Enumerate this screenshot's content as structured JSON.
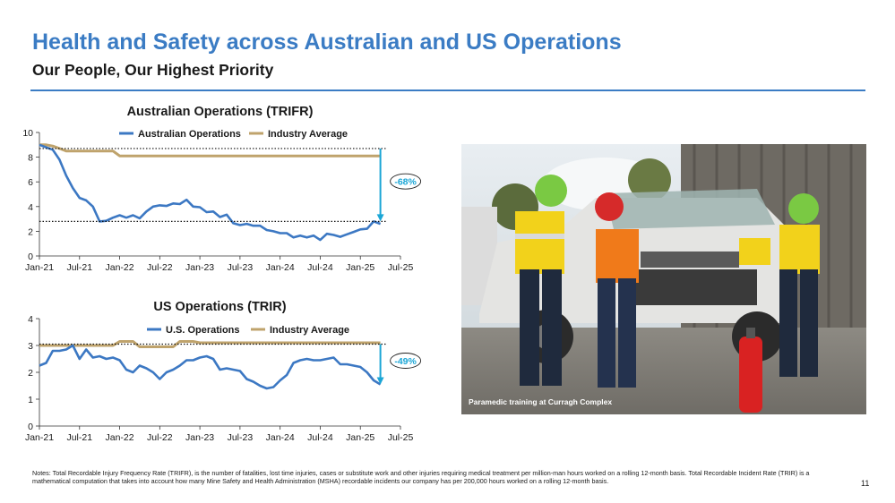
{
  "header": {
    "title": "Health and Safety across Australian and US Operations",
    "subtitle": "Our People, Our Highest Priority"
  },
  "chart_data": [
    {
      "type": "line",
      "title": "Australian Operations (TRIFR)",
      "x_tick_labels": [
        "Jan-21",
        "Jul-21",
        "Jan-22",
        "Jul-22",
        "Jan-23",
        "Jul-23",
        "Jan-24",
        "Jul-24",
        "Jan-25",
        "Jul-25"
      ],
      "ylim": [
        0,
        10
      ],
      "y_ticks": [
        0,
        2,
        4,
        6,
        8,
        10
      ],
      "legend_position": "top-center",
      "grid": false,
      "series": [
        {
          "name": "Australian Operations",
          "color": "#3c78c3",
          "x": [
            "Jan-21",
            "Feb-21",
            "Mar-21",
            "Apr-21",
            "May-21",
            "Jun-21",
            "Jul-21",
            "Aug-21",
            "Sep-21",
            "Oct-21",
            "Nov-21",
            "Dec-21",
            "Jan-22",
            "Feb-22",
            "Mar-22",
            "Apr-22",
            "May-22",
            "Jun-22",
            "Jul-22",
            "Aug-22",
            "Sep-22",
            "Oct-22",
            "Nov-22",
            "Dec-22",
            "Jan-23",
            "Feb-23",
            "Mar-23",
            "Apr-23",
            "May-23",
            "Jun-23",
            "Jul-23",
            "Aug-23",
            "Sep-23",
            "Oct-23",
            "Nov-23",
            "Dec-23",
            "Jan-24",
            "Feb-24",
            "Mar-24",
            "Apr-24",
            "May-24",
            "Jun-24",
            "Jul-24",
            "Aug-24",
            "Sep-24",
            "Oct-24",
            "Nov-24",
            "Dec-24",
            "Jan-25",
            "Feb-25",
            "Mar-25",
            "Apr-25"
          ],
          "values": [
            9.0,
            8.8,
            8.6,
            7.8,
            6.5,
            5.5,
            4.7,
            4.5,
            4.0,
            2.8,
            2.85,
            3.1,
            3.3,
            3.1,
            3.3,
            3.05,
            3.6,
            4.0,
            4.1,
            4.05,
            4.25,
            4.2,
            4.55,
            4.0,
            3.95,
            3.55,
            3.6,
            3.15,
            3.35,
            2.65,
            2.5,
            2.6,
            2.45,
            2.45,
            2.1,
            2.0,
            1.85,
            1.85,
            1.5,
            1.65,
            1.5,
            1.65,
            1.3,
            1.8,
            1.7,
            1.55,
            1.75,
            1.95,
            2.15,
            2.2,
            2.8,
            2.6
          ]
        },
        {
          "name": "Industry Average",
          "color": "#bfa36c",
          "x": [
            "Jan-21",
            "Feb-21",
            "Mar-21",
            "Apr-21",
            "May-21",
            "Jun-21",
            "Jul-21",
            "Aug-21",
            "Sep-21",
            "Oct-21",
            "Nov-21",
            "Dec-21",
            "Jan-22",
            "Feb-22",
            "Mar-22",
            "Apr-22",
            "May-22",
            "Jun-22",
            "Jul-22",
            "Aug-22",
            "Sep-22",
            "Oct-22",
            "Nov-22",
            "Dec-22",
            "Jan-23",
            "Feb-23",
            "Mar-23",
            "Apr-23",
            "May-23",
            "Jun-23",
            "Jul-23",
            "Aug-23",
            "Sep-23",
            "Oct-23",
            "Nov-23",
            "Dec-23",
            "Jan-24",
            "Feb-24",
            "Mar-24",
            "Apr-24",
            "May-24",
            "Jun-24",
            "Jul-24",
            "Aug-24",
            "Sep-24",
            "Oct-24",
            "Nov-24",
            "Dec-24",
            "Jan-25",
            "Feb-25",
            "Mar-25",
            "Apr-25"
          ],
          "values": [
            9.0,
            9.0,
            8.9,
            8.7,
            8.5,
            8.5,
            8.5,
            8.5,
            8.5,
            8.5,
            8.5,
            8.5,
            8.1,
            8.1,
            8.1,
            8.1,
            8.1,
            8.1,
            8.1,
            8.1,
            8.1,
            8.1,
            8.1,
            8.1,
            8.1,
            8.1,
            8.1,
            8.1,
            8.1,
            8.1,
            8.1,
            8.1,
            8.1,
            8.1,
            8.1,
            8.1,
            8.1,
            8.1,
            8.1,
            8.1,
            8.1,
            8.1,
            8.1,
            8.1,
            8.1,
            8.1,
            8.1,
            8.1,
            8.1,
            8.1,
            8.1,
            8.1
          ]
        }
      ],
      "annotations": [
        {
          "type": "reference-line",
          "value": 8.7,
          "style": "dotted"
        },
        {
          "type": "reference-line",
          "value": 2.8,
          "style": "dotted"
        },
        {
          "type": "arrow",
          "at": "Apr-25",
          "from": 8.7,
          "to": 2.8,
          "label": "-68%"
        }
      ]
    },
    {
      "type": "line",
      "title": "US Operations (TRIR)",
      "x_tick_labels": [
        "Jan-21",
        "Jul-21",
        "Jan-22",
        "Jul-22",
        "Jan-23",
        "Jul-23",
        "Jan-24",
        "Jul-24",
        "Jan-25",
        "Jul-25"
      ],
      "ylim": [
        0,
        4
      ],
      "y_ticks": [
        0,
        1,
        2,
        3,
        4
      ],
      "legend_position": "top-center",
      "grid": false,
      "series": [
        {
          "name": "U.S. Operations",
          "color": "#3c78c3",
          "x": [
            "Jan-21",
            "Feb-21",
            "Mar-21",
            "Apr-21",
            "May-21",
            "Jun-21",
            "Jul-21",
            "Aug-21",
            "Sep-21",
            "Oct-21",
            "Nov-21",
            "Dec-21",
            "Jan-22",
            "Feb-22",
            "Mar-22",
            "Apr-22",
            "May-22",
            "Jun-22",
            "Jul-22",
            "Aug-22",
            "Sep-22",
            "Oct-22",
            "Nov-22",
            "Dec-22",
            "Jan-23",
            "Feb-23",
            "Mar-23",
            "Apr-23",
            "May-23",
            "Jun-23",
            "Jul-23",
            "Aug-23",
            "Sep-23",
            "Oct-23",
            "Nov-23",
            "Dec-23",
            "Jan-24",
            "Feb-24",
            "Mar-24",
            "Apr-24",
            "May-24",
            "Jun-24",
            "Jul-24",
            "Aug-24",
            "Sep-24",
            "Oct-24",
            "Nov-24",
            "Dec-24",
            "Jan-25",
            "Feb-25",
            "Mar-25",
            "Apr-25"
          ],
          "values": [
            2.25,
            2.35,
            2.8,
            2.8,
            2.85,
            3.0,
            2.5,
            2.85,
            2.55,
            2.6,
            2.5,
            2.55,
            2.45,
            2.1,
            2.0,
            2.25,
            2.15,
            2.0,
            1.75,
            2.0,
            2.1,
            2.25,
            2.45,
            2.45,
            2.55,
            2.6,
            2.5,
            2.1,
            2.15,
            2.1,
            2.05,
            1.75,
            1.65,
            1.5,
            1.4,
            1.45,
            1.7,
            1.9,
            2.35,
            2.45,
            2.5,
            2.45,
            2.45,
            2.5,
            2.55,
            2.3,
            2.3,
            2.25,
            2.2,
            2.0,
            1.7,
            1.55
          ]
        },
        {
          "name": "Industry Average",
          "color": "#bfa36c",
          "x": [
            "Jan-21",
            "Feb-21",
            "Mar-21",
            "Apr-21",
            "May-21",
            "Jun-21",
            "Jul-21",
            "Aug-21",
            "Sep-21",
            "Oct-21",
            "Nov-21",
            "Dec-21",
            "Jan-22",
            "Feb-22",
            "Mar-22",
            "Apr-22",
            "May-22",
            "Jun-22",
            "Jul-22",
            "Aug-22",
            "Sep-22",
            "Oct-22",
            "Nov-22",
            "Dec-22",
            "Jan-23",
            "Feb-23",
            "Mar-23",
            "Apr-23",
            "May-23",
            "Jun-23",
            "Jul-23",
            "Aug-23",
            "Sep-23",
            "Oct-23",
            "Nov-23",
            "Dec-23",
            "Jan-24",
            "Feb-24",
            "Mar-24",
            "Apr-24",
            "May-24",
            "Jun-24",
            "Jul-24",
            "Aug-24",
            "Sep-24",
            "Oct-24",
            "Nov-24",
            "Dec-24",
            "Jan-25",
            "Feb-25",
            "Mar-25",
            "Apr-25"
          ],
          "values": [
            3.0,
            3.0,
            3.0,
            3.0,
            3.0,
            3.0,
            3.0,
            3.0,
            3.0,
            3.0,
            3.0,
            3.0,
            3.15,
            3.15,
            3.15,
            2.95,
            2.95,
            2.95,
            2.95,
            2.95,
            2.95,
            3.15,
            3.15,
            3.15,
            3.1,
            3.1,
            3.1,
            3.1,
            3.1,
            3.1,
            3.1,
            3.1,
            3.1,
            3.1,
            3.1,
            3.1,
            3.1,
            3.1,
            3.1,
            3.1,
            3.1,
            3.1,
            3.1,
            3.1,
            3.1,
            3.1,
            3.1,
            3.1,
            3.1,
            3.1,
            3.1,
            3.1
          ]
        }
      ],
      "annotations": [
        {
          "type": "reference-line",
          "value": 3.05,
          "style": "dotted"
        },
        {
          "type": "arrow",
          "at": "Apr-25",
          "from": 3.05,
          "to": 1.55,
          "label": "-49%"
        }
      ]
    }
  ],
  "photo": {
    "caption": "Paramedic training at Curragh Complex"
  },
  "footer": {
    "notes": "Notes: Total Recordable Injury Frequency Rate (TRIFR), is the number of fatalities, lost time injuries, cases or substitute work and other injuries requiring medical treatment per million-man hours worked on a rolling 12-month basis. Total Recordable Incident Rate (TRIR) is a mathematical computation that takes into account how many Mine Safety and Health Administration (MSHA) recordable incidents our company has per 200,000 hours worked on a rolling 12-month basis.",
    "page_number": "11"
  },
  "colors": {
    "title": "#3b7cc4",
    "callout": "#1ba6d6"
  }
}
